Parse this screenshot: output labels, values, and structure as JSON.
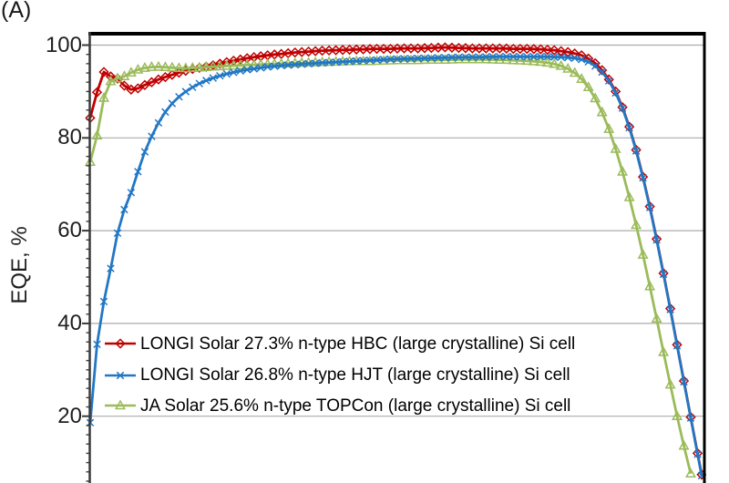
{
  "figure": {
    "panel_label": "(A)"
  },
  "chart_data": {
    "type": "line",
    "title": "",
    "xlabel": "",
    "ylabel": "EQE, %",
    "grid": true,
    "legend_position": "inside lower-left",
    "x_axis": {
      "labels_visible": false,
      "unit": "nm",
      "estimated_range_nm": [
        300,
        1200
      ]
    },
    "y_axis": {
      "ticks": [
        100,
        80,
        60,
        40,
        20
      ],
      "minor_tick_step": 2,
      "max": 100,
      "visible_min": 6
    },
    "axis_colors": {
      "border": "#000000",
      "axis_line": "#3a3a3a",
      "gridline": "#ababab"
    },
    "series": [
      {
        "name": "HBC",
        "label": "LONGI Solar 27.3% n-type HBC (large crystalline) Si cell",
        "color": "#c00000",
        "marker": "diamond",
        "points": [
          [
            300,
            84.3
          ],
          [
            304,
            86.6
          ],
          [
            308,
            88.5
          ],
          [
            312,
            91.2
          ],
          [
            316,
            93.3
          ],
          [
            320,
            94.2
          ],
          [
            324,
            93.7
          ],
          [
            328,
            93.0
          ],
          [
            333,
            93.6
          ],
          [
            338,
            93.1
          ],
          [
            343,
            92.3
          ],
          [
            348,
            91.5
          ],
          [
            353,
            90.9
          ],
          [
            358,
            90.5
          ],
          [
            363,
            90.3
          ],
          [
            368,
            90.5
          ],
          [
            373,
            90.9
          ],
          [
            380,
            91.4
          ],
          [
            390,
            92.0
          ],
          [
            400,
            92.6
          ],
          [
            412,
            93.2
          ],
          [
            424,
            93.8
          ],
          [
            436,
            94.3
          ],
          [
            448,
            94.8
          ],
          [
            460,
            95.1
          ],
          [
            472,
            95.4
          ],
          [
            484,
            95.8
          ],
          [
            496,
            96.2
          ],
          [
            508,
            96.6
          ],
          [
            520,
            96.9
          ],
          [
            535,
            97.3
          ],
          [
            550,
            97.6
          ],
          [
            565,
            97.9
          ],
          [
            580,
            98.1
          ],
          [
            600,
            98.4
          ],
          [
            620,
            98.6
          ],
          [
            640,
            98.8
          ],
          [
            660,
            98.9
          ],
          [
            680,
            99.0
          ],
          [
            700,
            99.1
          ],
          [
            720,
            99.2
          ],
          [
            740,
            99.2
          ],
          [
            760,
            99.3
          ],
          [
            780,
            99.3
          ],
          [
            800,
            99.4
          ],
          [
            820,
            99.5
          ],
          [
            840,
            99.4
          ],
          [
            860,
            99.3
          ],
          [
            880,
            99.3
          ],
          [
            900,
            99.3
          ],
          [
            920,
            99.2
          ],
          [
            940,
            99.2
          ],
          [
            960,
            99.1
          ],
          [
            980,
            98.9
          ],
          [
            1000,
            98.5
          ],
          [
            1010,
            98.2
          ],
          [
            1020,
            97.8
          ],
          [
            1030,
            97.1
          ],
          [
            1040,
            96.1
          ],
          [
            1050,
            94.6
          ],
          [
            1060,
            92.6
          ],
          [
            1070,
            90.0
          ],
          [
            1080,
            86.6
          ],
          [
            1090,
            82.4
          ],
          [
            1100,
            77.4
          ],
          [
            1110,
            71.6
          ],
          [
            1120,
            65.2
          ],
          [
            1130,
            58.2
          ],
          [
            1140,
            50.8
          ],
          [
            1150,
            43.2
          ],
          [
            1160,
            35.4
          ],
          [
            1170,
            27.6
          ],
          [
            1180,
            19.8
          ],
          [
            1190,
            12.0
          ],
          [
            1196,
            7.4
          ]
        ]
      },
      {
        "name": "TOPCon",
        "label": "JA Solar 25.6% n-type TOPCon (large crystalline) Si cell",
        "color": "#9bbb59",
        "marker": "triangle",
        "points": [
          [
            300,
            74.8
          ],
          [
            304,
            77.6
          ],
          [
            308,
            79.0
          ],
          [
            312,
            82.0
          ],
          [
            316,
            85.8
          ],
          [
            320,
            88.6
          ],
          [
            324,
            91.3
          ],
          [
            329,
            92.1
          ],
          [
            334,
            92.5
          ],
          [
            340,
            92.8
          ],
          [
            346,
            93.0
          ],
          [
            352,
            93.4
          ],
          [
            358,
            93.9
          ],
          [
            364,
            94.4
          ],
          [
            370,
            94.7
          ],
          [
            377,
            95.0
          ],
          [
            385,
            95.2
          ],
          [
            393,
            95.3
          ],
          [
            402,
            95.3
          ],
          [
            412,
            95.2
          ],
          [
            422,
            95.1
          ],
          [
            432,
            95.0
          ],
          [
            443,
            95.0
          ],
          [
            454,
            95.1
          ],
          [
            465,
            95.2
          ],
          [
            477,
            95.3
          ],
          [
            489,
            95.4
          ],
          [
            501,
            95.5
          ],
          [
            515,
            95.6
          ],
          [
            530,
            95.7
          ],
          [
            548,
            95.8
          ],
          [
            566,
            95.9
          ],
          [
            584,
            96.0
          ],
          [
            602,
            96.1
          ],
          [
            622,
            96.2
          ],
          [
            642,
            96.3
          ],
          [
            662,
            96.4
          ],
          [
            684,
            96.5
          ],
          [
            706,
            96.5
          ],
          [
            728,
            96.6
          ],
          [
            750,
            96.7
          ],
          [
            772,
            96.7
          ],
          [
            794,
            96.8
          ],
          [
            816,
            96.8
          ],
          [
            838,
            96.9
          ],
          [
            860,
            96.9
          ],
          [
            882,
            96.9
          ],
          [
            904,
            96.8
          ],
          [
            926,
            96.7
          ],
          [
            948,
            96.5
          ],
          [
            965,
            96.3
          ],
          [
            978,
            96.0
          ],
          [
            990,
            95.5
          ],
          [
            1000,
            94.9
          ],
          [
            1010,
            94.0
          ],
          [
            1020,
            92.7
          ],
          [
            1030,
            90.9
          ],
          [
            1040,
            88.5
          ],
          [
            1050,
            85.5
          ],
          [
            1060,
            81.9
          ],
          [
            1070,
            77.6
          ],
          [
            1080,
            72.7
          ],
          [
            1090,
            67.2
          ],
          [
            1100,
            61.2
          ],
          [
            1110,
            54.8
          ],
          [
            1120,
            48.0
          ],
          [
            1130,
            41.0
          ],
          [
            1140,
            33.8
          ],
          [
            1150,
            26.8
          ],
          [
            1160,
            20.0
          ],
          [
            1170,
            13.6
          ],
          [
            1180,
            7.6
          ]
        ]
      },
      {
        "name": "HJT",
        "label": "LONGI Solar 26.8% n-type HJT (large crystalline) Si cell",
        "color": "#2277c4",
        "marker": "x",
        "points": [
          [
            300,
            18.6
          ],
          [
            302,
            23.5
          ],
          [
            305,
            29.0
          ],
          [
            308,
            33.2
          ],
          [
            312,
            37.8
          ],
          [
            317,
            42.2
          ],
          [
            322,
            46.4
          ],
          [
            328,
            50.4
          ],
          [
            333,
            54.0
          ],
          [
            337,
            57.3
          ],
          [
            341,
            60.2
          ],
          [
            346,
            63.0
          ],
          [
            352,
            65.3
          ],
          [
            358,
            67.3
          ],
          [
            363,
            69.6
          ],
          [
            368,
            71.8
          ],
          [
            374,
            74.6
          ],
          [
            380,
            77.0
          ],
          [
            387,
            79.4
          ],
          [
            394,
            81.6
          ],
          [
            402,
            83.8
          ],
          [
            411,
            85.8
          ],
          [
            421,
            87.6
          ],
          [
            431,
            89.0
          ],
          [
            442,
            90.2
          ],
          [
            453,
            91.2
          ],
          [
            464,
            92.0
          ],
          [
            476,
            92.7
          ],
          [
            488,
            93.3
          ],
          [
            500,
            93.8
          ],
          [
            515,
            94.3
          ],
          [
            530,
            94.7
          ],
          [
            545,
            95.0
          ],
          [
            560,
            95.3
          ],
          [
            580,
            95.6
          ],
          [
            600,
            95.8
          ],
          [
            620,
            96.0
          ],
          [
            645,
            96.2
          ],
          [
            670,
            96.4
          ],
          [
            695,
            96.6
          ],
          [
            720,
            96.8
          ],
          [
            745,
            97.0
          ],
          [
            770,
            97.1
          ],
          [
            795,
            97.2
          ],
          [
            820,
            97.3
          ],
          [
            845,
            97.4
          ],
          [
            870,
            97.4
          ],
          [
            895,
            97.5
          ],
          [
            920,
            97.5
          ],
          [
            945,
            97.5
          ],
          [
            970,
            97.5
          ],
          [
            990,
            97.4
          ],
          [
            1000,
            97.3
          ],
          [
            1010,
            97.2
          ],
          [
            1020,
            96.9
          ],
          [
            1030,
            96.4
          ],
          [
            1040,
            95.5
          ],
          [
            1050,
            94.2
          ],
          [
            1060,
            92.3
          ],
          [
            1070,
            89.7
          ],
          [
            1080,
            86.4
          ],
          [
            1090,
            82.2
          ],
          [
            1100,
            77.2
          ],
          [
            1110,
            71.4
          ],
          [
            1120,
            65.0
          ],
          [
            1130,
            58.0
          ],
          [
            1140,
            50.6
          ],
          [
            1150,
            43.0
          ],
          [
            1160,
            35.2
          ],
          [
            1170,
            27.4
          ],
          [
            1180,
            19.6
          ],
          [
            1190,
            11.8
          ],
          [
            1196,
            7.2
          ]
        ]
      }
    ],
    "legend_order": [
      "HBC",
      "HJT",
      "TOPCon"
    ]
  }
}
